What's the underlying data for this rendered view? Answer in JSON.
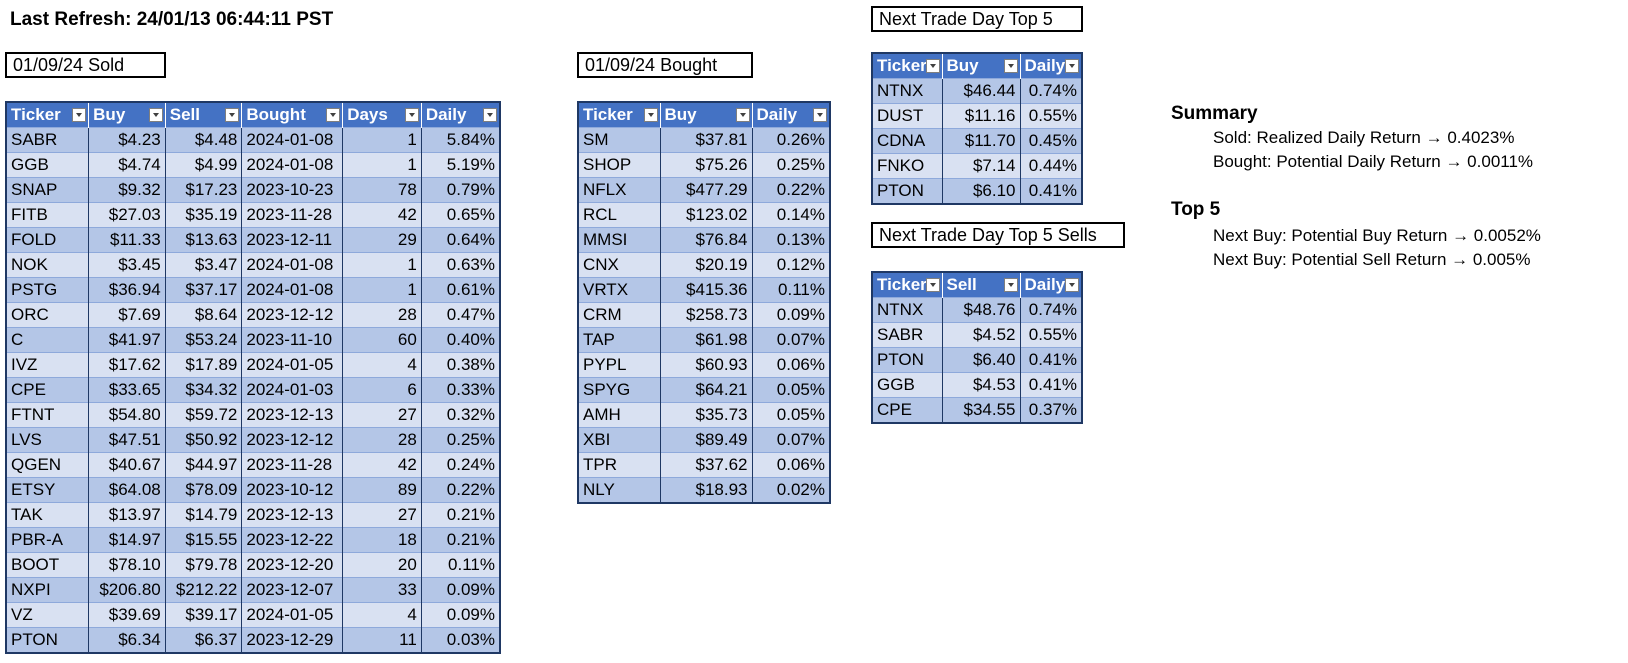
{
  "refresh": "Last Refresh: 24/01/13 06:44:11 PST",
  "sold": {
    "label": "01/09/24 Sold",
    "headers": [
      "Ticker",
      "Buy",
      "Sell",
      "Bought",
      "Days",
      "Daily"
    ],
    "rows": [
      [
        "SABR",
        "$4.23",
        "$4.48",
        "2024-01-08",
        "1",
        "5.84%"
      ],
      [
        "GGB",
        "$4.74",
        "$4.99",
        "2024-01-08",
        "1",
        "5.19%"
      ],
      [
        "SNAP",
        "$9.32",
        "$17.23",
        "2023-10-23",
        "78",
        "0.79%"
      ],
      [
        "FITB",
        "$27.03",
        "$35.19",
        "2023-11-28",
        "42",
        "0.65%"
      ],
      [
        "FOLD",
        "$11.33",
        "$13.63",
        "2023-12-11",
        "29",
        "0.64%"
      ],
      [
        "NOK",
        "$3.45",
        "$3.47",
        "2024-01-08",
        "1",
        "0.63%"
      ],
      [
        "PSTG",
        "$36.94",
        "$37.17",
        "2024-01-08",
        "1",
        "0.61%"
      ],
      [
        "ORC",
        "$7.69",
        "$8.64",
        "2023-12-12",
        "28",
        "0.47%"
      ],
      [
        "C",
        "$41.97",
        "$53.24",
        "2023-11-10",
        "60",
        "0.40%"
      ],
      [
        "IVZ",
        "$17.62",
        "$17.89",
        "2024-01-05",
        "4",
        "0.38%"
      ],
      [
        "CPE",
        "$33.65",
        "$34.32",
        "2024-01-03",
        "6",
        "0.33%"
      ],
      [
        "FTNT",
        "$54.80",
        "$59.72",
        "2023-12-13",
        "27",
        "0.32%"
      ],
      [
        "LVS",
        "$47.51",
        "$50.92",
        "2023-12-12",
        "28",
        "0.25%"
      ],
      [
        "QGEN",
        "$40.67",
        "$44.97",
        "2023-11-28",
        "42",
        "0.24%"
      ],
      [
        "ETSY",
        "$64.08",
        "$78.09",
        "2023-10-12",
        "89",
        "0.22%"
      ],
      [
        "TAK",
        "$13.97",
        "$14.79",
        "2023-12-13",
        "27",
        "0.21%"
      ],
      [
        "PBR-A",
        "$14.97",
        "$15.55",
        "2023-12-22",
        "18",
        "0.21%"
      ],
      [
        "BOOT",
        "$78.10",
        "$79.78",
        "2023-12-20",
        "20",
        "0.11%"
      ],
      [
        "NXPI",
        "$206.80",
        "$212.22",
        "2023-12-07",
        "33",
        "0.09%"
      ],
      [
        "VZ",
        "$39.69",
        "$39.17",
        "2024-01-05",
        "4",
        "0.09%"
      ],
      [
        "PTON",
        "$6.34",
        "$6.37",
        "2023-12-29",
        "11",
        "0.03%"
      ]
    ]
  },
  "bought": {
    "label": "01/09/24 Bought",
    "headers": [
      "Ticker",
      "Buy",
      "Daily"
    ],
    "rows": [
      [
        "SM",
        "$37.81",
        "0.26%"
      ],
      [
        "SHOP",
        "$75.26",
        "0.25%"
      ],
      [
        "NFLX",
        "$477.29",
        "0.22%"
      ],
      [
        "RCL",
        "$123.02",
        "0.14%"
      ],
      [
        "MMSI",
        "$76.84",
        "0.13%"
      ],
      [
        "CNX",
        "$20.19",
        "0.12%"
      ],
      [
        "VRTX",
        "$415.36",
        "0.11%"
      ],
      [
        "CRM",
        "$258.73",
        "0.09%"
      ],
      [
        "TAP",
        "$61.98",
        "0.07%"
      ],
      [
        "PYPL",
        "$60.93",
        "0.06%"
      ],
      [
        "SPYG",
        "$64.21",
        "0.05%"
      ],
      [
        "AMH",
        "$35.73",
        "0.05%"
      ],
      [
        "XBI",
        "$89.49",
        "0.07%"
      ],
      [
        "TPR",
        "$37.62",
        "0.06%"
      ],
      [
        "NLY",
        "$18.93",
        "0.02%"
      ]
    ]
  },
  "top5buy": {
    "label": "Next Trade Day Top 5",
    "headers": [
      "Ticker",
      "Buy",
      "Daily"
    ],
    "rows": [
      [
        "NTNX",
        "$46.44",
        "0.74%"
      ],
      [
        "DUST",
        "$11.16",
        "0.55%"
      ],
      [
        "CDNA",
        "$11.70",
        "0.45%"
      ],
      [
        "FNKO",
        "$7.14",
        "0.44%"
      ],
      [
        "PTON",
        "$6.10",
        "0.41%"
      ]
    ]
  },
  "top5sell": {
    "label": "Next Trade Day Top 5 Sells",
    "headers": [
      "Ticker",
      "Sell",
      "Daily"
    ],
    "rows": [
      [
        "NTNX",
        "$48.76",
        "0.74%"
      ],
      [
        "SABR",
        "$4.52",
        "0.55%"
      ],
      [
        "PTON",
        "$6.40",
        "0.41%"
      ],
      [
        "GGB",
        "$4.53",
        "0.41%"
      ],
      [
        "CPE",
        "$34.55",
        "0.37%"
      ]
    ]
  },
  "summary": {
    "title": "Summary",
    "sold": "Sold: Realized Daily Return → 0.4023%",
    "bought": "Bought: Potential Daily Return → 0.0011%"
  },
  "top5": {
    "title": "Top 5",
    "buy": "Next Buy: Potential Buy Return → 0.0052%",
    "sell": "Next Buy: Potential Sell Return → 0.005%"
  },
  "colors": {
    "header": "#4472c4",
    "row_dark": "#b4c6e7",
    "row_light": "#d9e1f2",
    "border": "#1f3864"
  }
}
